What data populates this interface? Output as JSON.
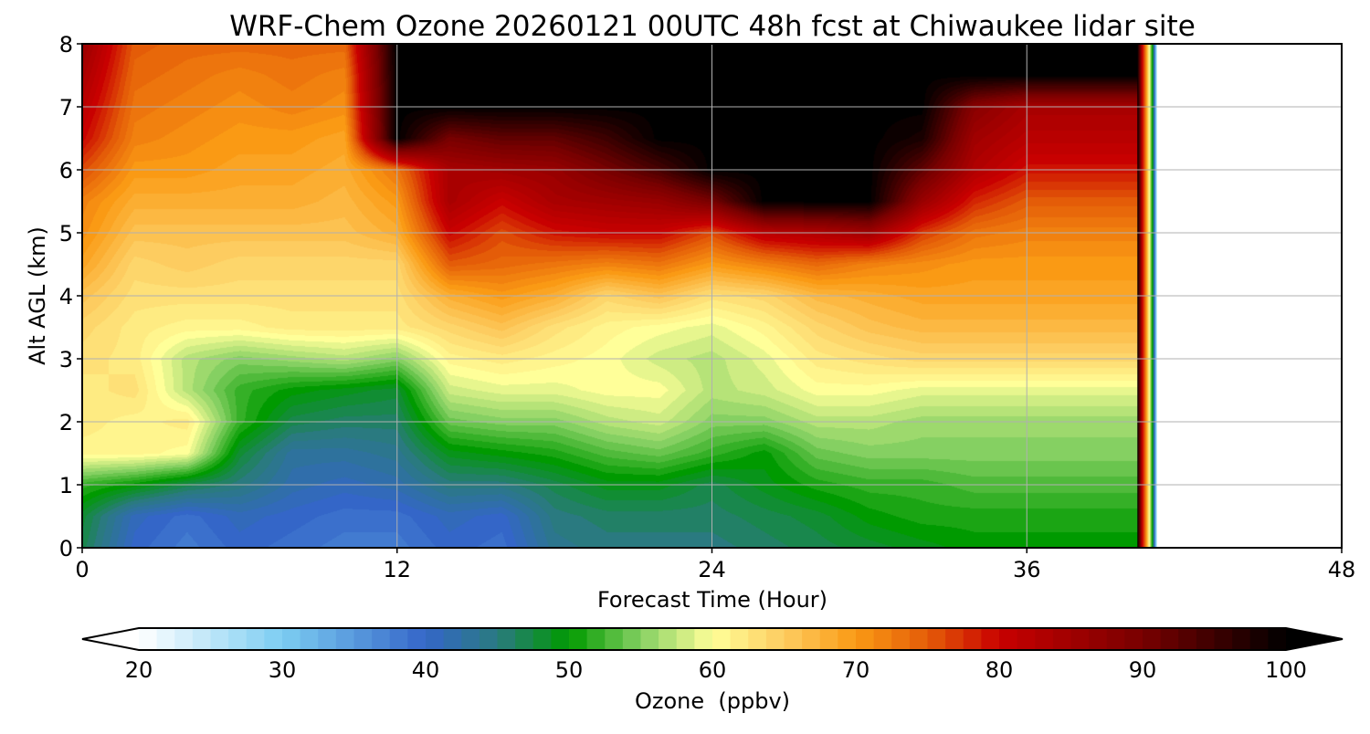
{
  "chart_data": {
    "type": "heatmap",
    "title": "WRF-Chem Ozone  20260121 00UTC 48h fcst at Chiwaukee lidar site",
    "xlabel": "Forecast Time (Hour)",
    "ylabel": "Alt AGL (km)",
    "xlim": [
      0,
      48
    ],
    "ylim": [
      0,
      8
    ],
    "xticks": [
      0,
      12,
      24,
      36,
      48
    ],
    "yticks": [
      0,
      1,
      2,
      3,
      4,
      5,
      6,
      7,
      8
    ],
    "grid": true,
    "forecast_valid_until_hour": 40.7,
    "field": {
      "name": "ozone",
      "units": "ppbv",
      "x_hours": [
        0,
        2,
        4,
        6,
        8,
        10,
        12,
        14,
        16,
        18,
        20,
        22,
        24,
        26,
        28,
        30,
        32,
        34,
        36,
        38,
        40
      ],
      "y_km": [
        0,
        0.5,
        1,
        1.5,
        2,
        2.5,
        3,
        3.5,
        4,
        4.5,
        5,
        5.5,
        6,
        6.5,
        7,
        7.5,
        8
      ],
      "values": [
        [
          47,
          40,
          38,
          40,
          39,
          38,
          38,
          40,
          39,
          44,
          45,
          45,
          45,
          46,
          47,
          48,
          49,
          50,
          50,
          50,
          50
        ],
        [
          48,
          41,
          39,
          41,
          40,
          39,
          39,
          41,
          40,
          45,
          46,
          46,
          46,
          47,
          48,
          50,
          51,
          51,
          51,
          51,
          51
        ],
        [
          52,
          50,
          47,
          45,
          42,
          41,
          42,
          45,
          45,
          47,
          49,
          49,
          47,
          49,
          51,
          52,
          52,
          53,
          53,
          53,
          53
        ],
        [
          61,
          61,
          60,
          48,
          43,
          43,
          44,
          49,
          50,
          51,
          53,
          54,
          52,
          50,
          54,
          55,
          55,
          55,
          55,
          55,
          55
        ],
        [
          62,
          61,
          62,
          52,
          47,
          46,
          46,
          54,
          55,
          55,
          57,
          58,
          55,
          55,
          57,
          57,
          56,
          56,
          56,
          56,
          56
        ],
        [
          62,
          63,
          57,
          52,
          50,
          49,
          48,
          58,
          59,
          59,
          60,
          60,
          57,
          58,
          60,
          60,
          59,
          59,
          59,
          59,
          59
        ],
        [
          63,
          62,
          57,
          55,
          56,
          57,
          55,
          61,
          62,
          61,
          60,
          58,
          57,
          59,
          62,
          63,
          64,
          64,
          64,
          64,
          64
        ],
        [
          64,
          62,
          61,
          61,
          62,
          62,
          62,
          64,
          66,
          63,
          61,
          60,
          59,
          61,
          64,
          66,
          67,
          67,
          67,
          67,
          67
        ],
        [
          66,
          63,
          63,
          63,
          63,
          63,
          63,
          68,
          70,
          68,
          64,
          66,
          63,
          64,
          67,
          68,
          69,
          69,
          69,
          69,
          69
        ],
        [
          69,
          64,
          65,
          64,
          64,
          64,
          64,
          75,
          74,
          73,
          72,
          73,
          70,
          72,
          74,
          72,
          71,
          70,
          70,
          70,
          70
        ],
        [
          71,
          66,
          66,
          66,
          66,
          66,
          68,
          80,
          76,
          79,
          80,
          80,
          76,
          82,
          83,
          85,
          77,
          73,
          72,
          72,
          72
        ],
        [
          72,
          68,
          68,
          68,
          68,
          67,
          70,
          84,
          80,
          84,
          85,
          86,
          90,
          100,
          100,
          100,
          86,
          78,
          75,
          75,
          75
        ],
        [
          76,
          70,
          70,
          69,
          69,
          68,
          73,
          84,
          85,
          86,
          90,
          94,
          100,
          100,
          100,
          100,
          92,
          83,
          79,
          79,
          79
        ],
        [
          80,
          72,
          71,
          70,
          70,
          69,
          100,
          90,
          92,
          92,
          95,
          100,
          100,
          100,
          100,
          100,
          98,
          85,
          82,
          82,
          82
        ],
        [
          82,
          73,
          72,
          71,
          72,
          71,
          100,
          100,
          100,
          100,
          100,
          100,
          100,
          100,
          100,
          100,
          100,
          88,
          84,
          84,
          84
        ],
        [
          84,
          74,
          73,
          72,
          73,
          72,
          100,
          100,
          100,
          100,
          100,
          100,
          100,
          100,
          100,
          100,
          100,
          100,
          100,
          100,
          100
        ],
        [
          86,
          75,
          74,
          74,
          74,
          74,
          100,
          100,
          100,
          100,
          100,
          100,
          100,
          100,
          100,
          100,
          100,
          100,
          100,
          100,
          100
        ]
      ]
    },
    "colorbar": {
      "label": "Ozone  (ppbv)",
      "min": 20,
      "max": 100,
      "ticks": [
        20,
        30,
        40,
        50,
        60,
        70,
        80,
        90,
        100
      ],
      "extend": "both",
      "colors": [
        {
          "value": 20,
          "color": "#ffffff"
        },
        {
          "value": 30,
          "color": "#7ccdf2"
        },
        {
          "value": 40,
          "color": "#3466c8"
        },
        {
          "value": 45,
          "color": "#2a7a80"
        },
        {
          "value": 50,
          "color": "#009a00"
        },
        {
          "value": 55,
          "color": "#85d062"
        },
        {
          "value": 60,
          "color": "#ffff99"
        },
        {
          "value": 65,
          "color": "#fdcc60"
        },
        {
          "value": 70,
          "color": "#fa9a14"
        },
        {
          "value": 75,
          "color": "#e45c08"
        },
        {
          "value": 80,
          "color": "#c80000"
        },
        {
          "value": 90,
          "color": "#780000"
        },
        {
          "value": 100,
          "color": "#000000"
        }
      ]
    }
  }
}
